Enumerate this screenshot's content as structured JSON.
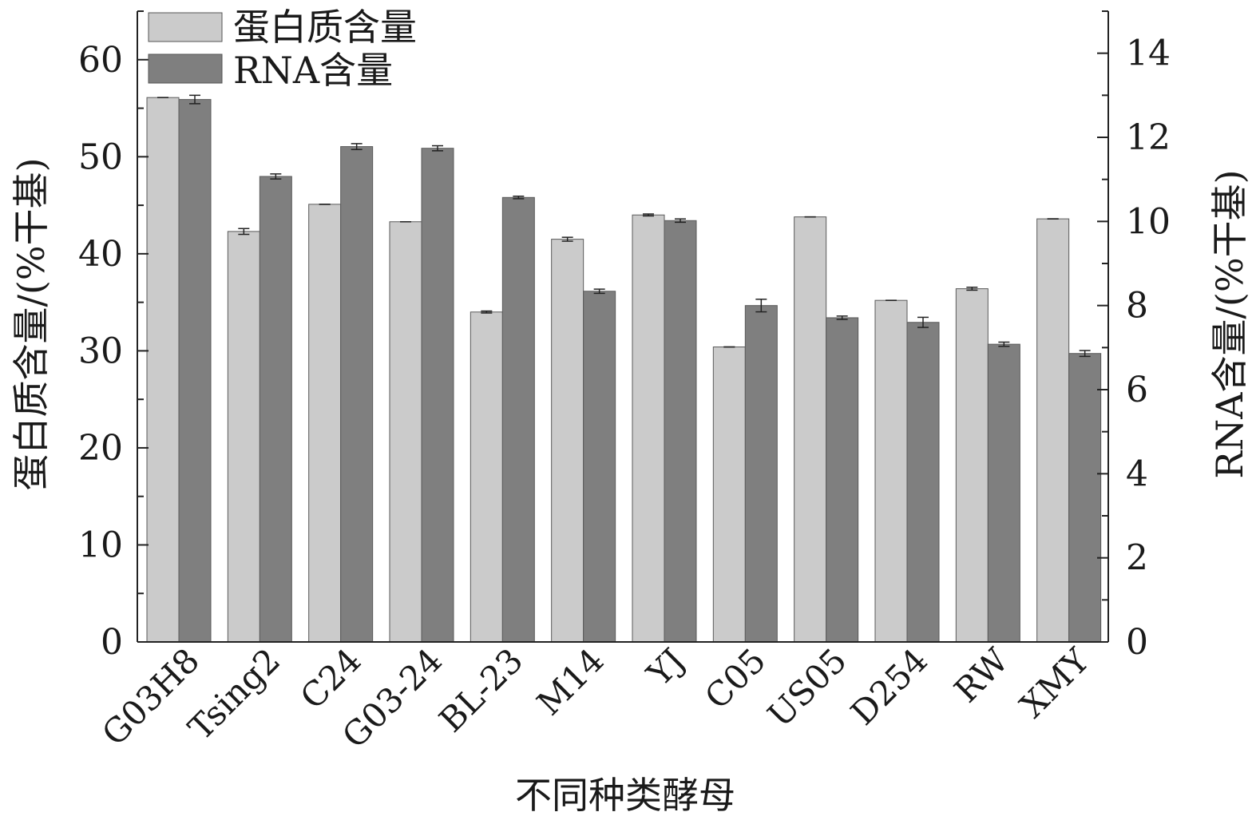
{
  "chart_data": {
    "type": "bar",
    "categories": [
      "G03H8",
      "Tsing2",
      "C24",
      "G03-24",
      "BL-23",
      "M14",
      "YJ",
      "C05",
      "US05",
      "D254",
      "RW",
      "XMY"
    ],
    "series": [
      {
        "name": "蛋白质含量",
        "axis": "left",
        "color": "#cbcbcb",
        "values": [
          56.1,
          42.3,
          45.1,
          43.3,
          34.0,
          41.5,
          44.0,
          30.4,
          43.8,
          35.2,
          36.4,
          43.6
        ],
        "errors": [
          0.0,
          0.3,
          0.0,
          0.0,
          0.1,
          0.2,
          0.1,
          0.0,
          0.0,
          0.0,
          0.15,
          0.0
        ]
      },
      {
        "name": "RNA含量",
        "axis": "right",
        "color": "#7f7f7f",
        "values": [
          12.9,
          11.07,
          11.78,
          11.74,
          10.57,
          8.34,
          10.02,
          8.0,
          7.71,
          7.6,
          7.08,
          6.86
        ],
        "errors": [
          0.1,
          0.06,
          0.07,
          0.06,
          0.03,
          0.05,
          0.04,
          0.15,
          0.04,
          0.12,
          0.05,
          0.07
        ]
      }
    ],
    "xlabel": "不同种类酵母",
    "ylabel_left": "蛋白质含量/(%干基)",
    "ylabel_right": "RNA含量/(%干基)",
    "ylim_left": [
      0,
      65
    ],
    "yticks_left": [
      0,
      10,
      20,
      30,
      40,
      50,
      60
    ],
    "ylim_right": [
      0,
      15
    ],
    "yticks_right": [
      0,
      2,
      4,
      6,
      8,
      10,
      12,
      14
    ],
    "legend_position": "top-left",
    "grid": false
  }
}
